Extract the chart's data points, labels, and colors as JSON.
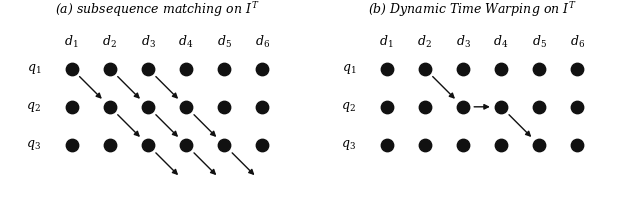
{
  "title_a": "(a) subsequence matching on $I^T$",
  "title_b": "(b) Dynamic Time Warping on $I^T$",
  "col_labels": [
    "$d_1$",
    "$d_2$",
    "$d_3$",
    "$d_4$",
    "$d_5$",
    "$d_6$"
  ],
  "row_labels": [
    "$q_1$",
    "$q_2$",
    "$q_3$"
  ],
  "dot_color": "#111111",
  "dot_size": 80,
  "arrow_color": "#111111",
  "arrows_a": [
    [
      0,
      0,
      1,
      1
    ],
    [
      1,
      0,
      2,
      1
    ],
    [
      2,
      0,
      3,
      1
    ],
    [
      1,
      1,
      2,
      2
    ],
    [
      2,
      1,
      3,
      2
    ],
    [
      3,
      1,
      4,
      2
    ],
    [
      2,
      2,
      3,
      3
    ],
    [
      3,
      2,
      4,
      3
    ],
    [
      4,
      2,
      5,
      3
    ]
  ],
  "arrows_b": [
    [
      1,
      0,
      2,
      1
    ],
    [
      2,
      1,
      3,
      1
    ],
    [
      3,
      1,
      4,
      2
    ]
  ],
  "figsize": [
    6.3,
    2.06
  ],
  "dpi": 100
}
